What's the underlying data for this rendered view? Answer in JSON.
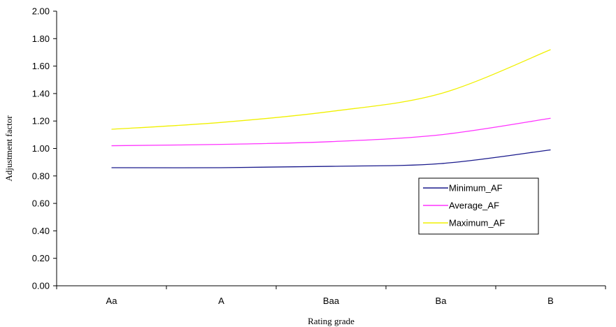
{
  "chart_data": {
    "type": "line",
    "title": "",
    "xlabel": "Rating grade",
    "ylabel": "Adjustment factor",
    "categories": [
      "Aa",
      "A",
      "Baa",
      "Ba",
      "B"
    ],
    "ylim": [
      0,
      2
    ],
    "ytick_labels": [
      "0.00",
      "0.20",
      "0.40",
      "0.60",
      "0.80",
      "1.00",
      "1.20",
      "1.40",
      "1.60",
      "1.80",
      "2.00"
    ],
    "grid": false,
    "legend_position": "right",
    "series": [
      {
        "name": "Minimum_AF",
        "color": "#1a1a8c",
        "values": [
          0.86,
          0.86,
          0.87,
          0.89,
          0.99
        ]
      },
      {
        "name": "Average_AF",
        "color": "#ff33ff",
        "values": [
          1.02,
          1.03,
          1.05,
          1.1,
          1.22
        ]
      },
      {
        "name": "Maximum_AF",
        "color": "#f0f000",
        "values": [
          1.14,
          1.19,
          1.27,
          1.4,
          1.72
        ]
      }
    ]
  }
}
